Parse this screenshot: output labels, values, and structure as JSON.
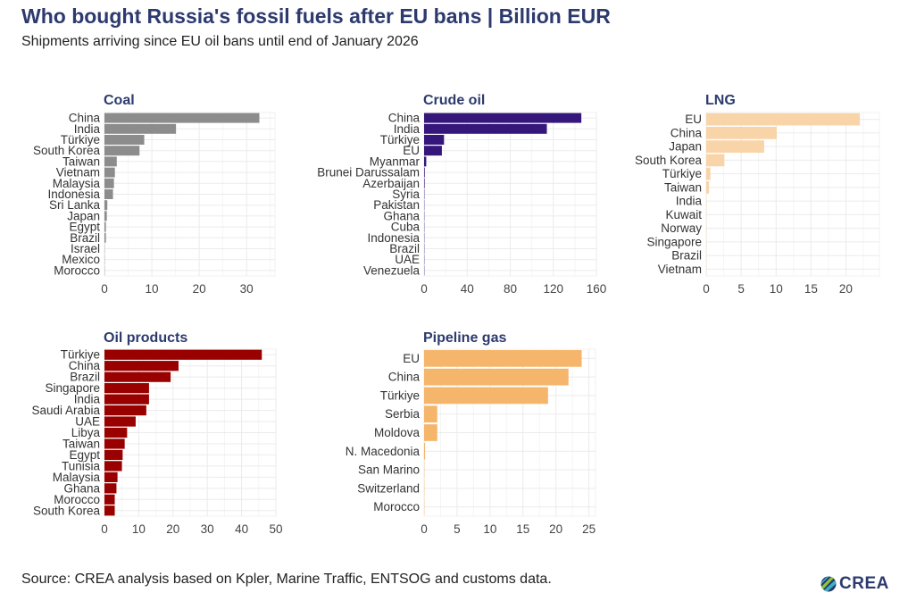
{
  "header": {
    "title": "Who bought Russia's fossil fuels after EU bans | Billion EUR",
    "subtitle": "Shipments arriving since EU oil bans until end of January 2026"
  },
  "footer": {
    "source": "Source: CREA analysis based on Kpler, Marine Traffic, ENTSOG and customs data.",
    "logo_text": "CREA"
  },
  "chart_data": [
    {
      "type": "bar",
      "orientation": "horizontal",
      "title": "Coal",
      "color": "#8c8c8c",
      "categories": [
        "China",
        "India",
        "Türkiye",
        "South Korea",
        "Taiwan",
        "Vietnam",
        "Malaysia",
        "Indonesia",
        "Sri Lanka",
        "Japan",
        "Egypt",
        "Brazil",
        "Israel",
        "Mexico",
        "Morocco"
      ],
      "values": [
        32.7,
        15.1,
        8.4,
        7.4,
        2.6,
        2.2,
        2.0,
        1.8,
        0.6,
        0.5,
        0.3,
        0.3,
        0.05,
        0.03,
        0.02
      ],
      "xlim": [
        0,
        36
      ],
      "xticks": [
        0,
        10,
        20,
        30
      ],
      "grid": true
    },
    {
      "type": "bar",
      "orientation": "horizontal",
      "title": "Crude oil",
      "color": "#35167a",
      "categories": [
        "China",
        "India",
        "Türkiye",
        "EU",
        "Myanmar",
        "Brunei Darussalam",
        "Azerbaijan",
        "Syria",
        "Pakistan",
        "Ghana",
        "Cuba",
        "Indonesia",
        "Brazil",
        "UAE",
        "Venezuela"
      ],
      "values": [
        146,
        114,
        18.5,
        16.5,
        2,
        0.6,
        0.5,
        0.3,
        0.2,
        0.15,
        0.1,
        0.1,
        0.1,
        0.05,
        0.05
      ],
      "xlim": [
        0,
        160
      ],
      "xticks": [
        0,
        40,
        80,
        120,
        160
      ],
      "grid": true
    },
    {
      "type": "bar",
      "orientation": "horizontal",
      "title": "LNG",
      "color": "#f9d4a8",
      "categories": [
        "EU",
        "China",
        "Japan",
        "South Korea",
        "Türkiye",
        "Taiwan",
        "India",
        "Kuwait",
        "Norway",
        "Singapore",
        "Brazil",
        "Vietnam"
      ],
      "values": [
        22,
        10.1,
        8.3,
        2.6,
        0.6,
        0.4,
        0.05,
        0.03,
        0.02,
        0.02,
        0.01,
        0.01
      ],
      "xlim": [
        0,
        24.8
      ],
      "xticks": [
        0,
        5,
        10,
        15,
        20
      ],
      "grid": true
    },
    {
      "type": "bar",
      "orientation": "horizontal",
      "title": "Oil products",
      "color": "#990000",
      "categories": [
        "Türkiye",
        "China",
        "Brazil",
        "Singapore",
        "India",
        "Saudi Arabia",
        "UAE",
        "Libya",
        "Taiwan",
        "Egypt",
        "Tunisia",
        "Malaysia",
        "Ghana",
        "Morocco",
        "South Korea"
      ],
      "values": [
        45.9,
        21.6,
        19.3,
        13.0,
        13.0,
        12.2,
        9.1,
        6.6,
        5.9,
        5.3,
        5.1,
        3.8,
        3.5,
        3.0,
        3.0
      ],
      "xlim": [
        0,
        50
      ],
      "xticks": [
        0,
        10,
        20,
        30,
        40,
        50
      ],
      "grid": true
    },
    {
      "type": "bar",
      "orientation": "horizontal",
      "title": "Pipeline gas",
      "color": "#f5b56b",
      "categories": [
        "EU",
        "China",
        "Türkiye",
        "Serbia",
        "Moldova",
        "N. Macedonia",
        "San Marino",
        "Switzerland",
        "Morocco"
      ],
      "values": [
        23.9,
        21.9,
        18.8,
        2.0,
        2.0,
        0.15,
        0.02,
        0.01,
        0.01
      ],
      "xlim": [
        0,
        26
      ],
      "xticks": [
        0,
        5,
        10,
        15,
        20,
        25
      ],
      "grid": true
    }
  ]
}
